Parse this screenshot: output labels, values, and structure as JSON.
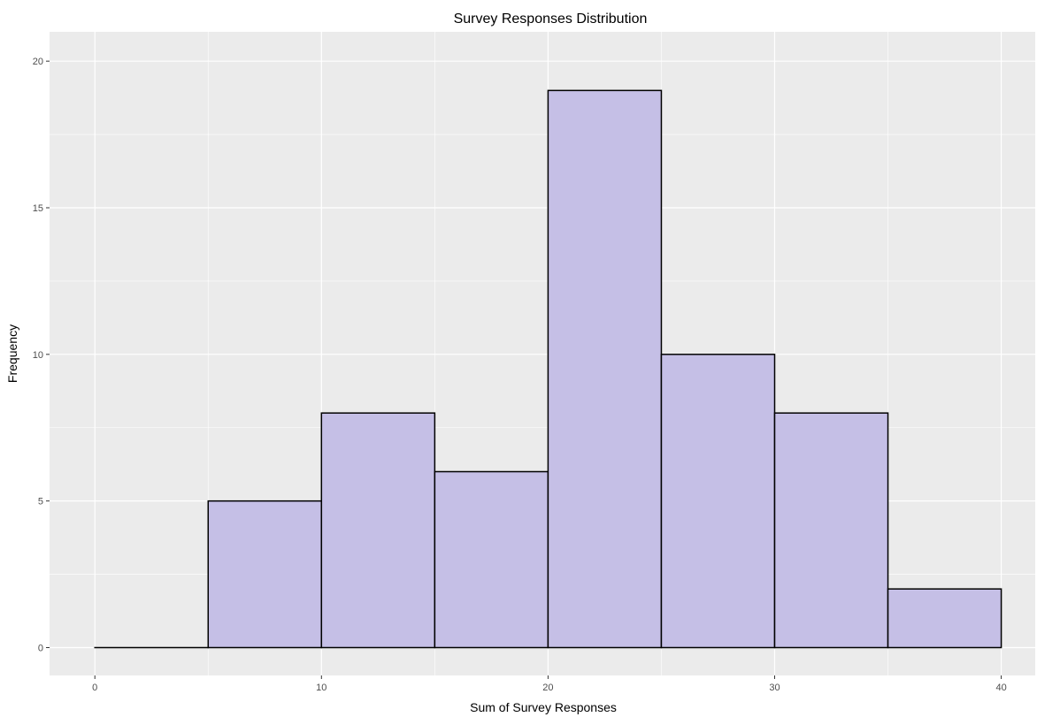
{
  "chart_data": {
    "type": "histogram",
    "title": "Survey Responses Distribution",
    "xlabel": "Sum of Survey Responses",
    "ylabel": "Frequency",
    "xlim": [
      -2,
      41.5
    ],
    "ylim": [
      -0.95,
      21
    ],
    "x_ticks": [
      0,
      10,
      20,
      30,
      40
    ],
    "x_tick_labels": [
      "0",
      "10",
      "20",
      "30",
      "40"
    ],
    "y_ticks": [
      0,
      5,
      10,
      15,
      20
    ],
    "y_tick_labels": [
      "0",
      "5",
      "10",
      "15",
      "20"
    ],
    "bins": [
      {
        "start": 0,
        "end": 5,
        "count": 0
      },
      {
        "start": 5,
        "end": 10,
        "count": 5
      },
      {
        "start": 10,
        "end": 15,
        "count": 8
      },
      {
        "start": 15,
        "end": 20,
        "count": 6
      },
      {
        "start": 20,
        "end": 25,
        "count": 19
      },
      {
        "start": 25,
        "end": 30,
        "count": 10
      },
      {
        "start": 30,
        "end": 35,
        "count": 8
      },
      {
        "start": 35,
        "end": 40,
        "count": 2
      }
    ],
    "grid": true,
    "legend": "none",
    "colors": {
      "bar_fill": "#c5bfe6",
      "bar_edge": "#000000",
      "panel_background": "#ebebeb",
      "grid": "#ffffff"
    }
  }
}
